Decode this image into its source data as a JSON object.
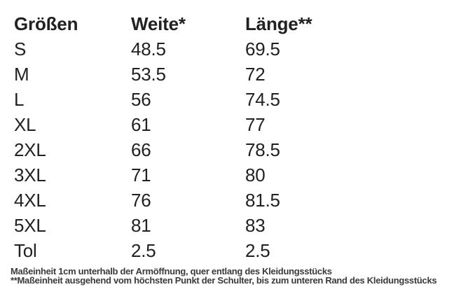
{
  "table": {
    "headers": [
      "Größen",
      "Weite*",
      "Länge**"
    ],
    "rows": [
      {
        "size": "S",
        "weite": "48.5",
        "laenge": "69.5"
      },
      {
        "size": "M",
        "weite": "53.5",
        "laenge": "72"
      },
      {
        "size": "L",
        "weite": "56",
        "laenge": "74.5"
      },
      {
        "size": "XL",
        "weite": "61",
        "laenge": "77"
      },
      {
        "size": "2XL",
        "weite": "66",
        "laenge": "78.5"
      },
      {
        "size": "3XL",
        "weite": "71",
        "laenge": "80"
      },
      {
        "size": "4XL",
        "weite": "76",
        "laenge": "81.5"
      },
      {
        "size": "5XL",
        "weite": "81",
        "laenge": "83"
      },
      {
        "size": "Tol",
        "weite": "2.5",
        "laenge": "2.5"
      }
    ]
  },
  "footnotes": {
    "line1": "Maßeinheit 1cm unterhalb der Armöffnung, quer entlang des Kleidungsstücks",
    "line2": "**Maßeinheit ausgehend vom höchsten Punkt der Schulter, bis zum unteren Rand des Kleidungsstücks"
  },
  "colors": {
    "text": "#212121",
    "footnote": "#3a3a3a",
    "background": "#ffffff"
  }
}
